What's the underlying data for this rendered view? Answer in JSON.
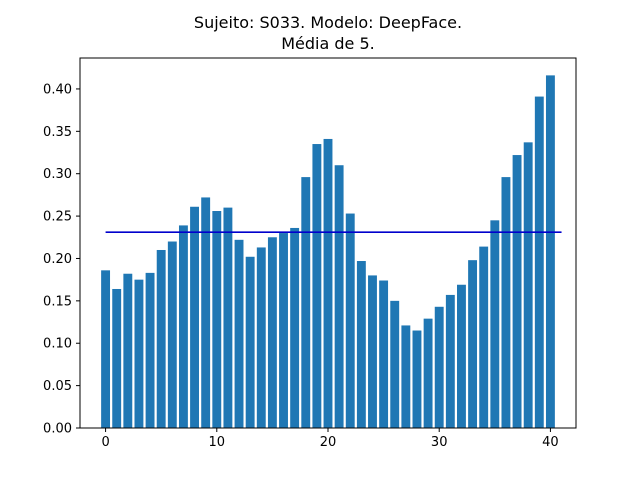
{
  "chart_data": {
    "type": "bar",
    "title": "Sujeito: S033. Modelo: DeepFace.",
    "subtitle": "Média de 5.",
    "xlabel": "",
    "ylabel": "",
    "x": [
      0,
      1,
      2,
      3,
      4,
      5,
      6,
      7,
      8,
      9,
      10,
      11,
      12,
      13,
      14,
      15,
      16,
      17,
      18,
      19,
      20,
      21,
      22,
      23,
      24,
      25,
      26,
      27,
      28,
      29,
      30,
      31,
      32,
      33,
      34,
      35,
      36,
      37,
      38,
      39,
      40
    ],
    "values": [
      0.186,
      0.164,
      0.182,
      0.175,
      0.183,
      0.21,
      0.22,
      0.239,
      0.261,
      0.272,
      0.256,
      0.26,
      0.222,
      0.202,
      0.213,
      0.225,
      0.23,
      0.236,
      0.296,
      0.335,
      0.341,
      0.31,
      0.253,
      0.197,
      0.18,
      0.174,
      0.15,
      0.121,
      0.115,
      0.129,
      0.143,
      0.157,
      0.169,
      0.198,
      0.214,
      0.245,
      0.296,
      0.322,
      0.337,
      0.391,
      0.416
    ],
    "mean_line": {
      "value": 0.231,
      "x_range": [
        0,
        41
      ],
      "color": "#0000cc"
    },
    "xlim": [
      -2.3,
      42.3
    ],
    "ylim": [
      0,
      0.4365
    ],
    "x_ticks": [
      0,
      10,
      20,
      30,
      40
    ],
    "x_tick_labels": [
      "0",
      "10",
      "20",
      "30",
      "40"
    ],
    "y_ticks": [
      0,
      0.05,
      0.1,
      0.15,
      0.2,
      0.25,
      0.3,
      0.35,
      0.4
    ],
    "y_tick_labels": [
      "0.00",
      "0.05",
      "0.10",
      "0.15",
      "0.20",
      "0.25",
      "0.30",
      "0.35",
      "0.40"
    ],
    "bar_color": "#1f77b4",
    "grid": false,
    "legend": "none"
  }
}
